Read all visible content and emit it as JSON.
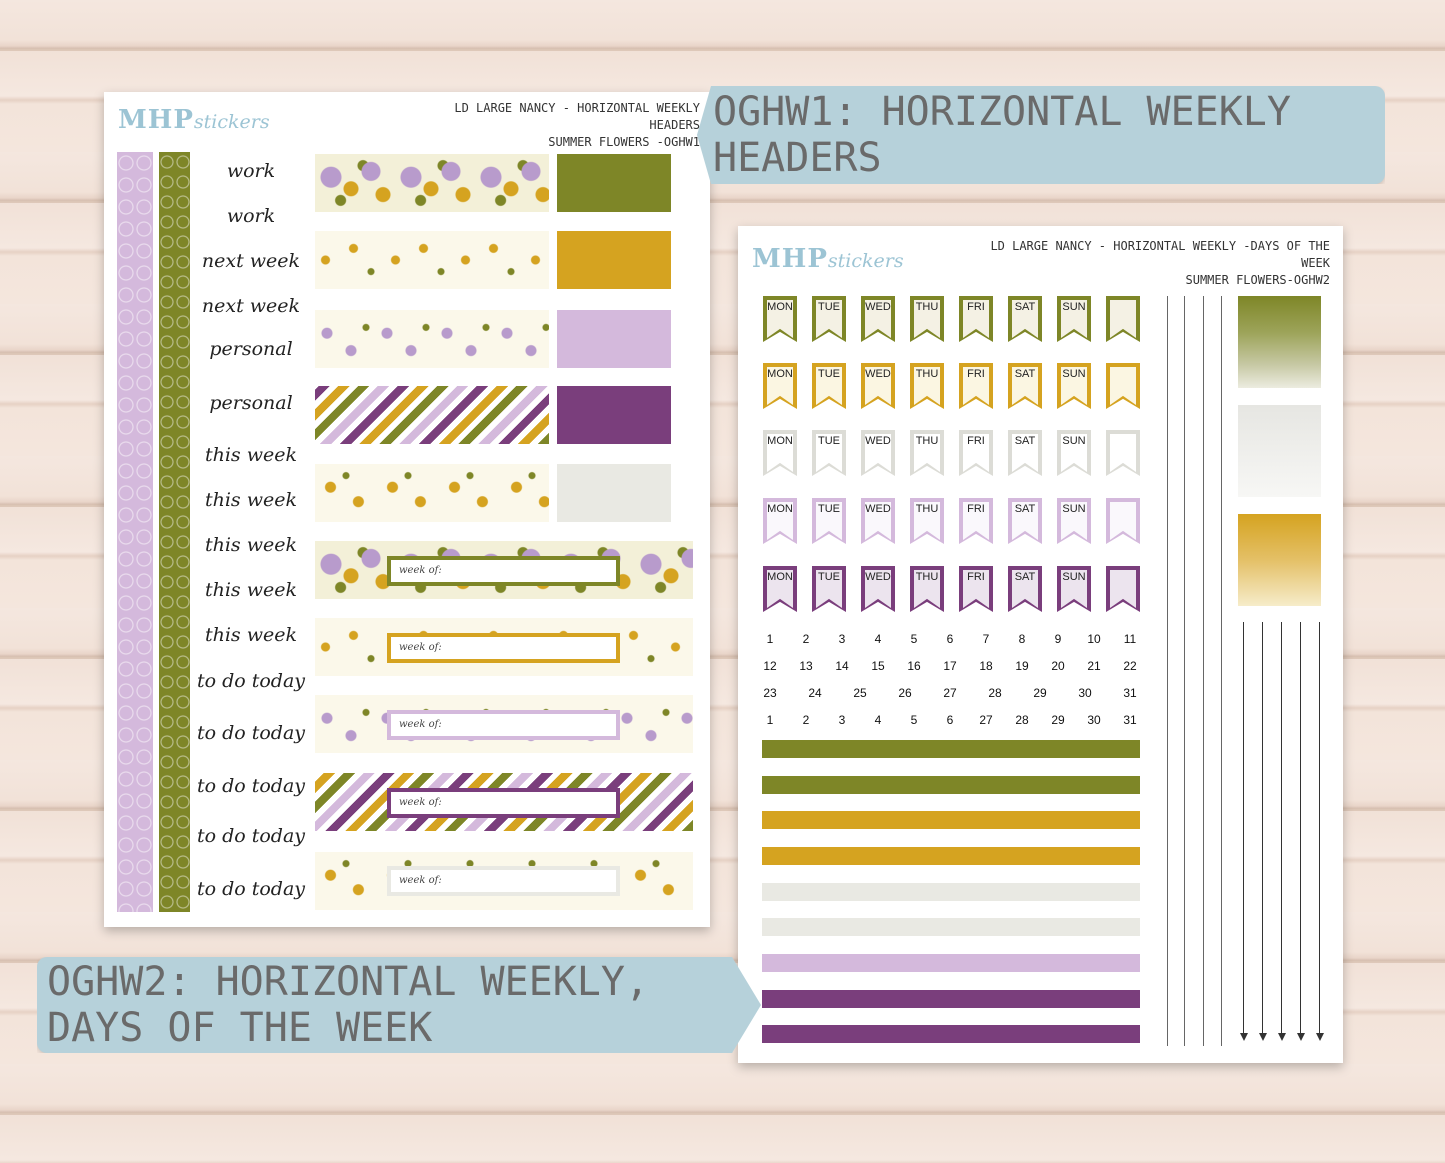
{
  "sheet1": {
    "logo_main": "MHP",
    "logo_sub": "stickers",
    "title_line1": "LD LARGE NANCY - HORIZONTAL WEEKLY HEADERS",
    "title_line2": "SUMMER FLOWERS -OGHW1",
    "script_labels": [
      "work",
      "work",
      "next week",
      "next week",
      "personal",
      "personal",
      "this week",
      "this week",
      "this week",
      "this week",
      "this week",
      "to do today",
      "to do today",
      "to do today",
      "to do today",
      "to do today"
    ],
    "week_of_label": "week of:"
  },
  "banner1": {
    "text": "OGHW1: HORIZONTAL WEEKLY HEADERS"
  },
  "banner2": {
    "text": "OGHW2: HORIZONTAL WEEKLY, DAYS OF THE WEEK"
  },
  "sheet2": {
    "logo_main": "MHP",
    "logo_sub": "stickers",
    "title_line1": "LD LARGE NANCY - HORIZONTAL WEEKLY -DAYS OF THE WEEK",
    "title_line2": "SUMMER FLOWERS-OGHW2",
    "days": [
      "MON",
      "TUE",
      "WED",
      "THU",
      "FRI",
      "SAT",
      "SUN"
    ],
    "numbers_row1": [
      "1",
      "2",
      "3",
      "4",
      "5",
      "6",
      "7",
      "8",
      "9",
      "10",
      "11"
    ],
    "numbers_row2": [
      "12",
      "13",
      "14",
      "15",
      "16",
      "17",
      "18",
      "19",
      "20",
      "21",
      "22"
    ],
    "numbers_row3": [
      "23",
      "24",
      "25",
      "26",
      "27",
      "28",
      "29",
      "30",
      "31"
    ],
    "numbers_row4": [
      "1",
      "2",
      "3",
      "4",
      "5",
      "6",
      "27",
      "28",
      "29",
      "30",
      "31"
    ]
  },
  "colors": {
    "olive": "#7e8627",
    "mustard": "#d5a320",
    "lavender": "#d4b9dc",
    "plum": "#7a3e7c",
    "light_gray": "#e9e9e3",
    "banner": "#b6d1da"
  }
}
